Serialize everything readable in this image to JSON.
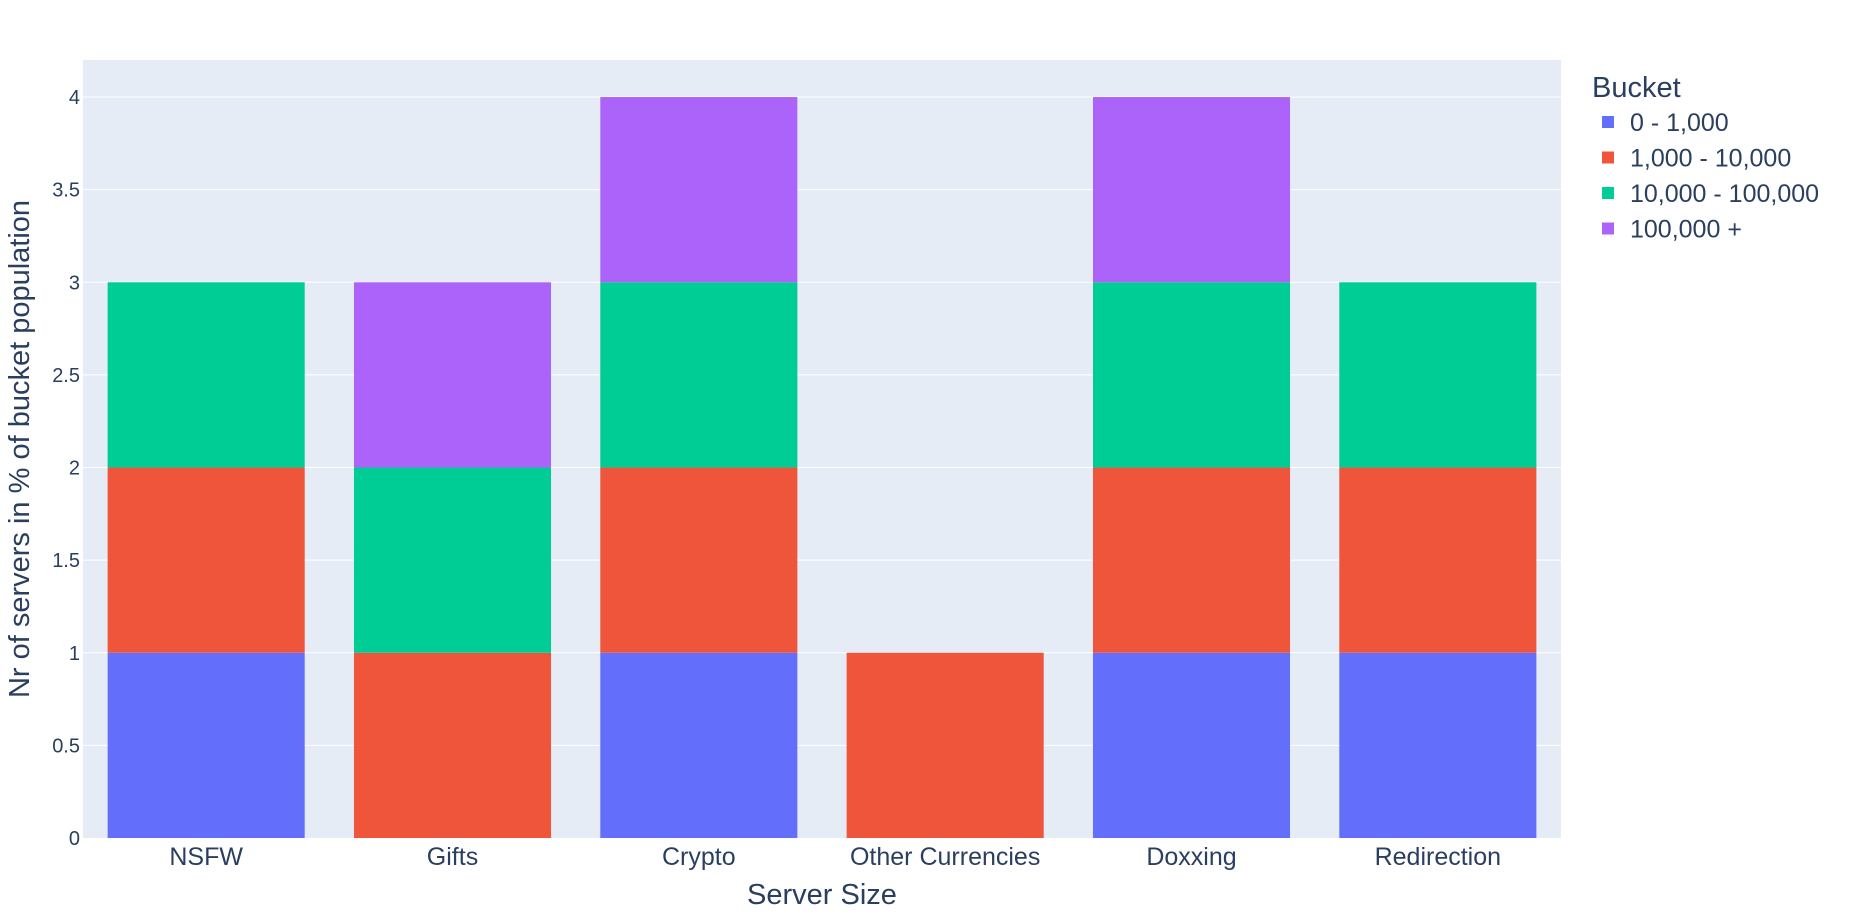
{
  "chart_data": {
    "type": "bar",
    "barmode": "stack",
    "categories": [
      "NSFW",
      "Gifts",
      "Crypto",
      "Other Currencies",
      "Doxxing",
      "Redirection"
    ],
    "series": [
      {
        "name": "0 - 1,000",
        "color": "#636efa",
        "values": [
          1,
          0,
          1,
          0,
          1,
          1
        ]
      },
      {
        "name": "1,000 - 10,000",
        "color": "#ef553b",
        "values": [
          1,
          1,
          1,
          1,
          1,
          1
        ]
      },
      {
        "name": "10,000 - 100,000",
        "color": "#00cc96",
        "values": [
          1,
          1,
          1,
          0,
          1,
          1
        ]
      },
      {
        "name": "100,000 +",
        "color": "#ab63fa",
        "values": [
          0,
          1,
          1,
          0,
          1,
          0
        ]
      }
    ],
    "xlabel": "Server Size",
    "ylabel": "Nr of servers in % of bucket population",
    "ylim": [
      0,
      4.2
    ],
    "yticks": [
      0,
      0.5,
      1,
      1.5,
      2,
      2.5,
      3,
      3.5,
      4
    ],
    "ytick_labels": [
      "0",
      "0.5",
      "1",
      "1.5",
      "2",
      "2.5",
      "3",
      "3.5",
      "4"
    ],
    "legend_title": "Bucket",
    "legend_position": "top-right",
    "grid": true,
    "plot_bg": "#e5ecf6"
  }
}
